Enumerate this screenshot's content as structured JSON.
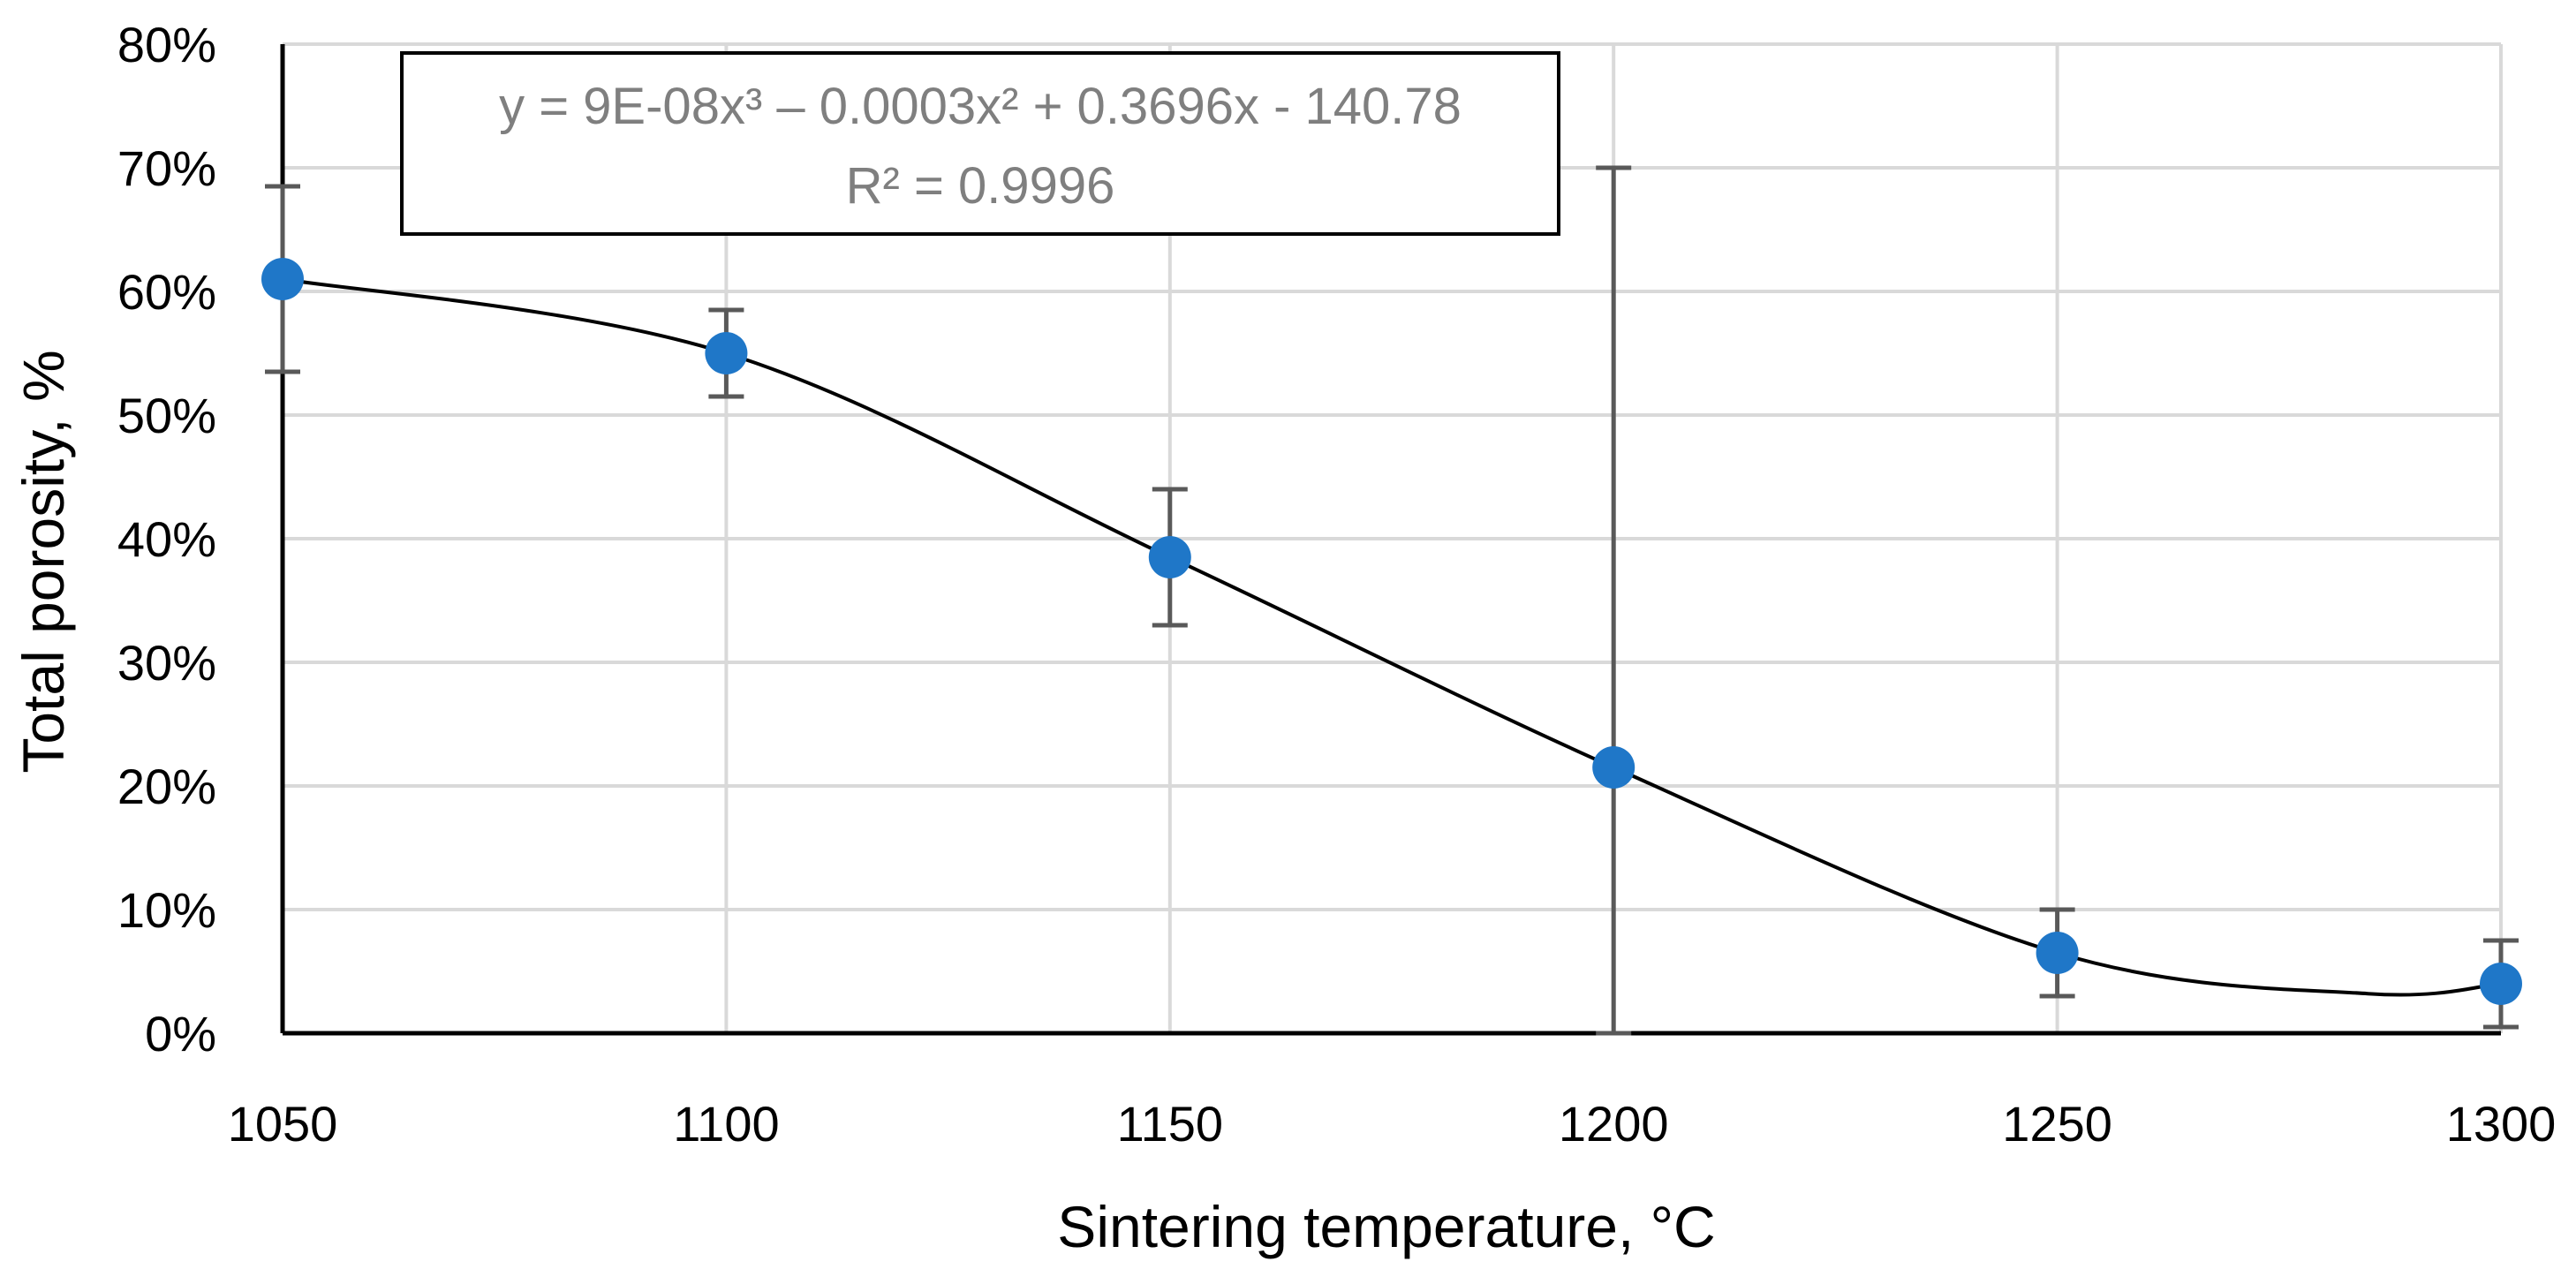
{
  "chart_data": {
    "type": "scatter",
    "title": "",
    "xlabel": "Sintering temperature, °C",
    "ylabel": "Total porosity,  %",
    "xlim": [
      1050,
      1300
    ],
    "ylim": [
      0,
      80
    ],
    "x_ticks": [
      "1050",
      "1100",
      "1150",
      "1200",
      "1250",
      "1300"
    ],
    "y_ticks": [
      "0%",
      "10%",
      "20%",
      "30%",
      "40%",
      "50%",
      "60%",
      "70%",
      "80%"
    ],
    "grid": true,
    "points": [
      {
        "x": 1050,
        "y": 61,
        "err_low": 53.5,
        "err_high": 68.5
      },
      {
        "x": 1100,
        "y": 55,
        "err_low": 51.5,
        "err_high": 58.5
      },
      {
        "x": 1150,
        "y": 38.5,
        "err_low": 33,
        "err_high": 44
      },
      {
        "x": 1200,
        "y": 21.5,
        "err_low": 0,
        "err_high": 70
      },
      {
        "x": 1250,
        "y": 6.5,
        "err_low": 3,
        "err_high": 10
      },
      {
        "x": 1300,
        "y": 4,
        "err_low": 0.5,
        "err_high": 7.5
      }
    ],
    "trendline": {
      "type": "polynomial",
      "order": 3,
      "equation": "y = 9E-08x³ – 0.0003x² + 0.3696x - 140.78",
      "r_squared": "R² = 0.9996"
    },
    "colors": {
      "marker": "#1f77c8",
      "errorbar": "#595959",
      "trendline": "#000000",
      "grid": "#d9d9d9",
      "equation_text": "#7f7f7f"
    }
  }
}
